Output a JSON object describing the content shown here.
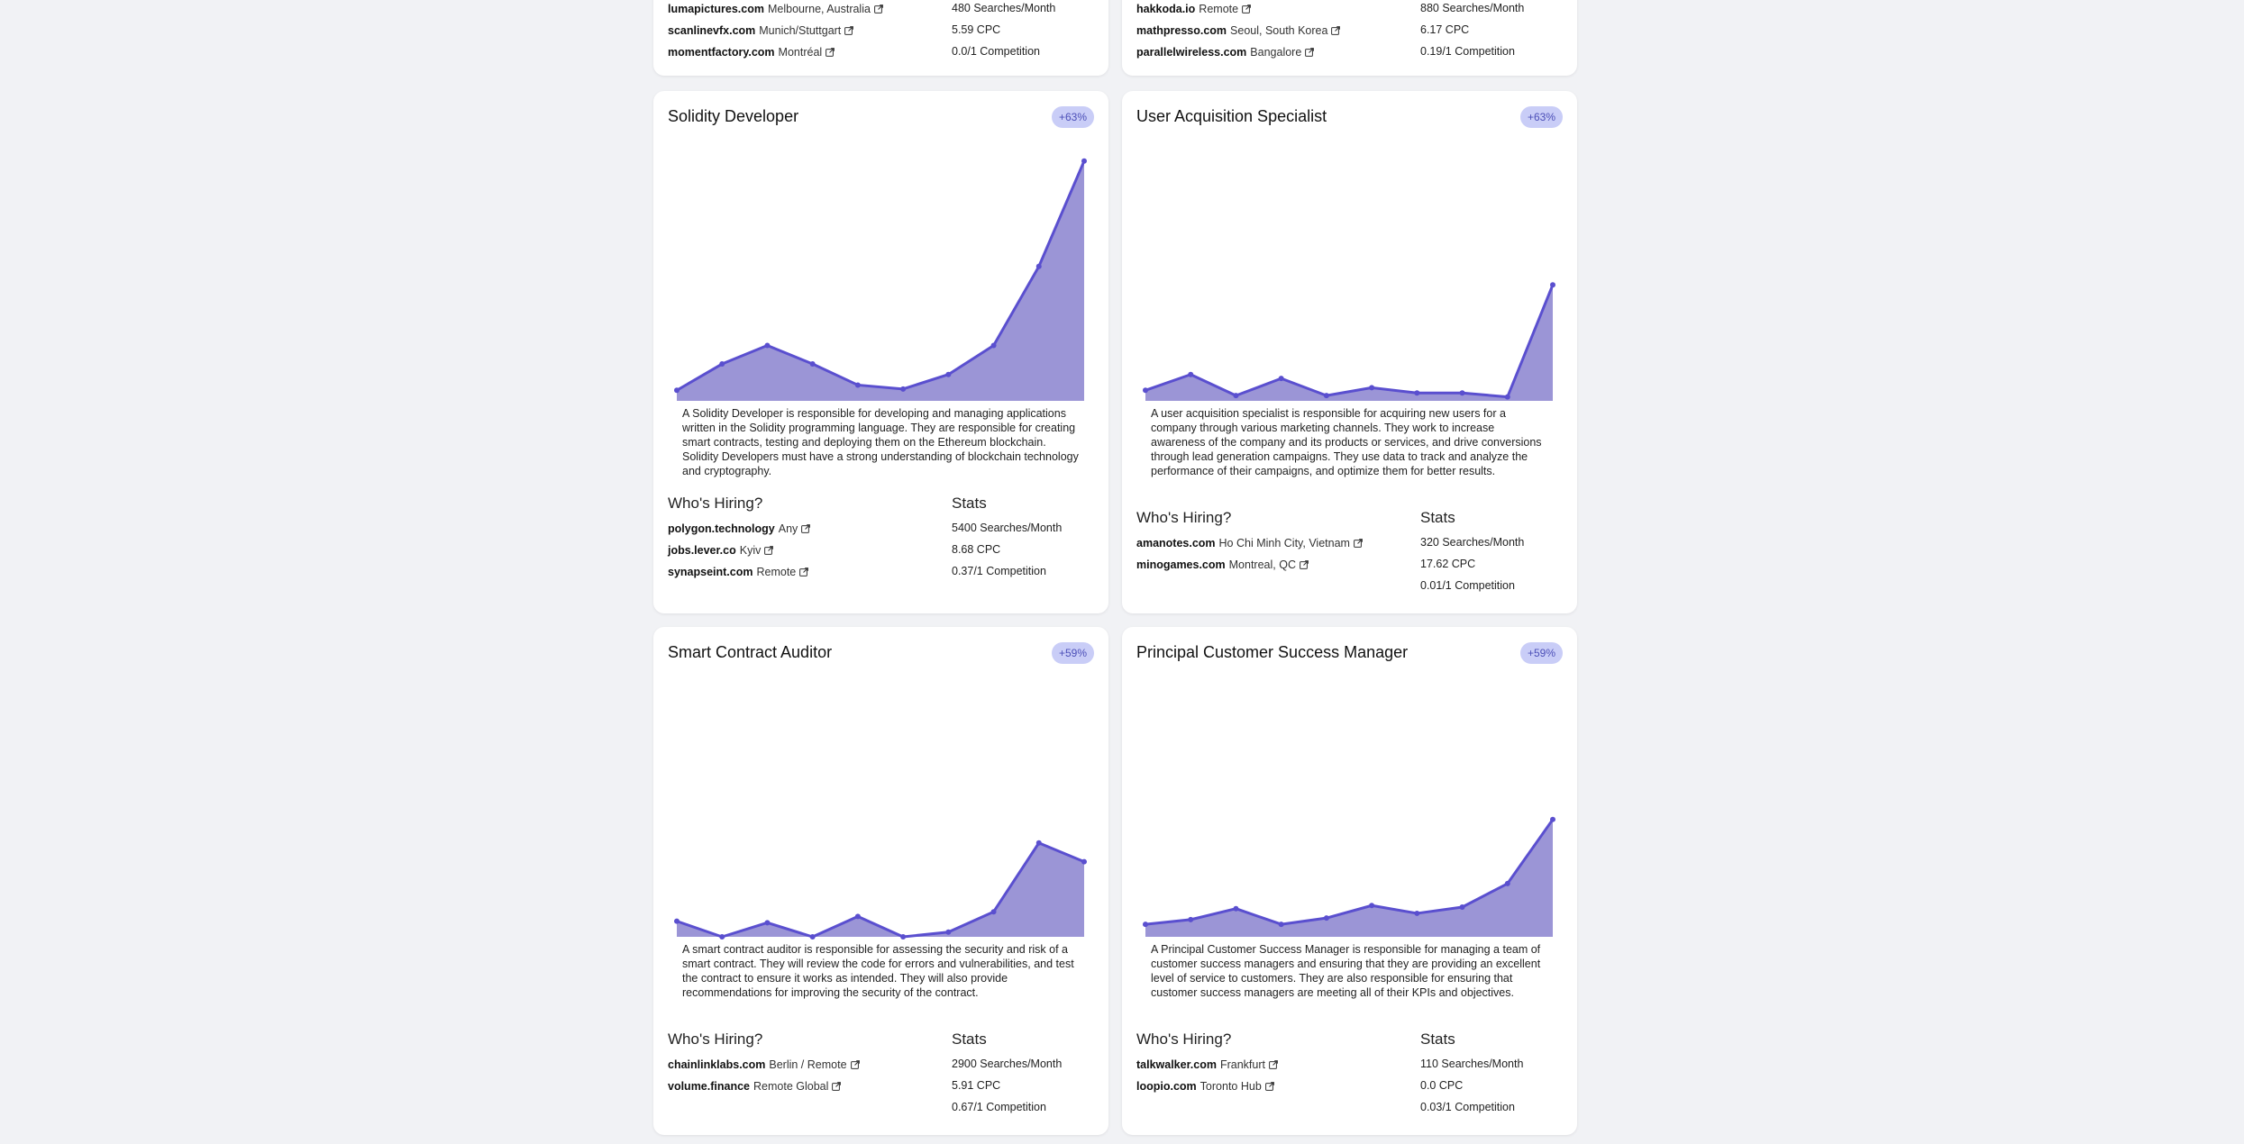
{
  "cards": [
    {
      "title": "",
      "hiring": [
        {
          "company": "lumapictures.com",
          "location": "Melbourne, Australia"
        },
        {
          "company": "scanlinevfx.com",
          "location": "Munich/Stuttgart"
        },
        {
          "company": "momentfactory.com",
          "location": "Montréal"
        }
      ],
      "stats": [
        "480 Searches/Month",
        "5.59 CPC",
        "0.0/1 Competition"
      ]
    },
    {
      "title": "",
      "hiring": [
        {
          "company": "hakkoda.io",
          "location": "Remote"
        },
        {
          "company": "mathpresso.com",
          "location": "Seoul, South Korea"
        },
        {
          "company": "parallelwireless.com",
          "location": "Bangalore"
        }
      ],
      "stats": [
        "880 Searches/Month",
        "6.17 CPC",
        "0.19/1 Competition"
      ]
    },
    {
      "title": "Solidity Developer",
      "badge": "+63%",
      "description": "A Solidity Developer is responsible for developing and managing applications written in the Solidity programming language. They are responsible for creating smart contracts, testing and deploying them on the Ethereum blockchain. Solidity Developers must have a strong understanding of blockchain technology and cryptography.",
      "hiring_heading": "Who's Hiring?",
      "stats_heading": "Stats",
      "hiring": [
        {
          "company": "polygon.technology",
          "location": "Any"
        },
        {
          "company": "jobs.lever.co",
          "location": "Kyiv"
        },
        {
          "company": "synapseint.com",
          "location": "Remote"
        }
      ],
      "stats": [
        "5400 Searches/Month",
        "8.68 CPC",
        "0.37/1 Competition"
      ],
      "chart_data": {
        "type": "area",
        "values": [
          8,
          28,
          42,
          28,
          12,
          9,
          20,
          42,
          102,
          182
        ],
        "ylim": [
          0,
          190
        ],
        "color": "#5a4fcf",
        "fill": "#9b95d6"
      }
    },
    {
      "title": "User Acquisition Specialist",
      "badge": "+63%",
      "description": "A user acquisition specialist is responsible for acquiring new users for a company through various marketing channels. They work to increase awareness of the company and its products or services, and drive conversions through lead generation campaigns. They use data to track and analyze the performance of their campaigns, and optimize them for better results.",
      "hiring_heading": "Who's Hiring?",
      "stats_heading": "Stats",
      "hiring": [
        {
          "company": "amanotes.com",
          "location": "Ho Chi Minh City, Vietnam"
        },
        {
          "company": "minogames.com",
          "location": "Montreal, QC"
        }
      ],
      "stats": [
        "320 Searches/Month",
        "17.62 CPC",
        "0.01/1 Competition"
      ],
      "chart_data": {
        "type": "area",
        "values": [
          8,
          20,
          4,
          17,
          4,
          10,
          6,
          6,
          3,
          88
        ],
        "ylim": [
          0,
          190
        ],
        "color": "#5a4fcf",
        "fill": "#9b95d6"
      }
    },
    {
      "title": "Smart Contract Auditor",
      "badge": "+59%",
      "description": "A smart contract auditor is responsible for assessing the security and risk of a smart contract. They will review the code for errors and vulnerabilities, and test the contract to ensure it works as intended. They will also provide recommendations for improving the security of the contract.",
      "hiring_heading": "Who's Hiring?",
      "stats_heading": "Stats",
      "hiring": [
        {
          "company": "chainlinklabs.com",
          "location": "Berlin / Remote"
        },
        {
          "company": "volume.finance",
          "location": "Remote Global"
        }
      ],
      "stats": [
        "2900 Searches/Month",
        "5.91 CPC",
        "0.67/1 Competition"
      ],
      "chart_data": {
        "type": "area",
        "values": [
          10,
          0,
          9,
          0,
          13,
          0,
          3,
          16,
          60,
          48
        ],
        "ylim": [
          0,
          160
        ],
        "color": "#5a4fcf",
        "fill": "#9b95d6"
      }
    },
    {
      "title": "Principal Customer Success Manager",
      "badge": "+59%",
      "description": "A Principal Customer Success Manager is responsible for managing a team of customer success managers and ensuring that they are providing an excellent level of service to customers. They are also responsible for ensuring that customer success managers are meeting all of their KPIs and objectives.",
      "hiring_heading": "Who's Hiring?",
      "stats_heading": "Stats",
      "hiring": [
        {
          "company": "talkwalker.com",
          "location": "Frankfurt"
        },
        {
          "company": "loopio.com",
          "location": "Toronto Hub"
        }
      ],
      "stats": [
        "110 Searches/Month",
        "0.0 CPC",
        "0.03/1 Competition"
      ],
      "chart_data": {
        "type": "area",
        "values": [
          8,
          11,
          18,
          8,
          12,
          20,
          15,
          19,
          34,
          75
        ],
        "ylim": [
          0,
          160
        ],
        "color": "#5a4fcf",
        "fill": "#9b95d6"
      }
    }
  ]
}
